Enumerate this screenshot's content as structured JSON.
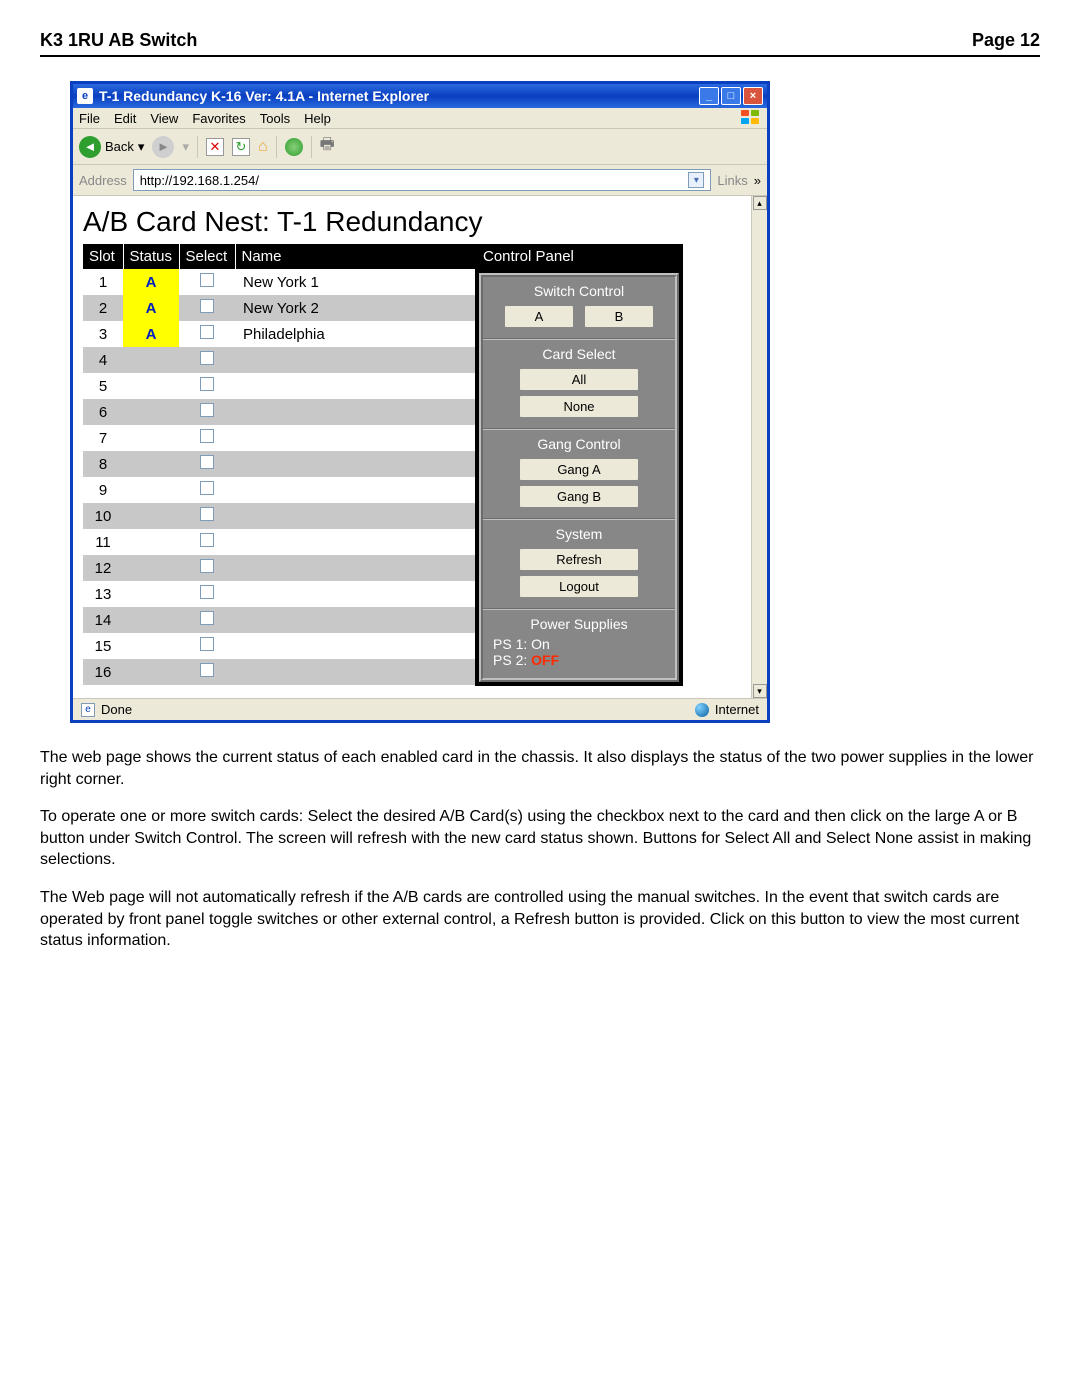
{
  "doc": {
    "header_left": "K3 1RU AB Switch",
    "header_right": "Page 12"
  },
  "window": {
    "title": "T-1 Redundancy K-16 Ver: 4.1A - Internet Explorer",
    "menus": [
      "File",
      "Edit",
      "View",
      "Favorites",
      "Tools",
      "Help"
    ],
    "back_label": "Back",
    "address_label": "Address",
    "address_url": "http://192.168.1.254/",
    "links_label": "Links",
    "status_done": "Done",
    "status_zone": "Internet"
  },
  "page": {
    "title": "A/B Card Nest: T-1 Redundancy",
    "columns": {
      "slot": "Slot",
      "status": "Status",
      "select": "Select",
      "name": "Name",
      "control": "Control Panel"
    },
    "rows": [
      {
        "slot": "1",
        "status": "A",
        "status_hilite": true,
        "name": "New York 1",
        "shade": "odd"
      },
      {
        "slot": "2",
        "status": "A",
        "status_hilite": true,
        "name": "New York 2",
        "shade": "even"
      },
      {
        "slot": "3",
        "status": "A",
        "status_hilite": true,
        "name": "Philadelphia",
        "shade": "odd"
      },
      {
        "slot": "4",
        "status": "",
        "status_hilite": false,
        "name": "",
        "shade": "even"
      },
      {
        "slot": "5",
        "status": "",
        "status_hilite": false,
        "name": "",
        "shade": "odd"
      },
      {
        "slot": "6",
        "status": "",
        "status_hilite": false,
        "name": "",
        "shade": "even"
      },
      {
        "slot": "7",
        "status": "",
        "status_hilite": false,
        "name": "",
        "shade": "odd"
      },
      {
        "slot": "8",
        "status": "",
        "status_hilite": false,
        "name": "",
        "shade": "even"
      },
      {
        "slot": "9",
        "status": "",
        "status_hilite": false,
        "name": "",
        "shade": "odd"
      },
      {
        "slot": "10",
        "status": "",
        "status_hilite": false,
        "name": "",
        "shade": "even"
      },
      {
        "slot": "11",
        "status": "",
        "status_hilite": false,
        "name": "",
        "shade": "odd"
      },
      {
        "slot": "12",
        "status": "",
        "status_hilite": false,
        "name": "",
        "shade": "even"
      },
      {
        "slot": "13",
        "status": "",
        "status_hilite": false,
        "name": "",
        "shade": "odd"
      },
      {
        "slot": "14",
        "status": "",
        "status_hilite": false,
        "name": "",
        "shade": "even"
      },
      {
        "slot": "15",
        "status": "",
        "status_hilite": false,
        "name": "",
        "shade": "odd"
      },
      {
        "slot": "16",
        "status": "",
        "status_hilite": false,
        "name": "",
        "shade": "even"
      }
    ],
    "control": {
      "switch_title": "Switch Control",
      "switch_a": "A",
      "switch_b": "B",
      "cardselect_title": "Card Select",
      "cardselect_all": "All",
      "cardselect_none": "None",
      "gang_title": "Gang Control",
      "gang_a": "Gang A",
      "gang_b": "Gang B",
      "system_title": "System",
      "system_refresh": "Refresh",
      "system_logout": "Logout",
      "ps_title": "Power Supplies",
      "ps1_label": "PS 1:",
      "ps1_value": "On",
      "ps2_label": "PS 2:",
      "ps2_value": "OFF"
    }
  },
  "colors": {
    "titlebar_bg": "#0a3fc0",
    "status_hilite_bg": "#ffff00",
    "status_hilite_fg": "#0020c0",
    "row_even_bg": "#c8c8c8",
    "row_odd_bg": "#ffffff",
    "panel_bg": "#878787",
    "ps_off_color": "#ff2a00"
  },
  "body_paragraphs": [
    "The web page shows the current status of each enabled card in the chassis.  It also displays the status of the two power supplies in the lower right corner.",
    "To operate one or more switch cards:  Select the desired A/B Card(s) using the checkbox next to the card and then click on the large A or B button under Switch Control.  The screen will refresh with the new card status shown.  Buttons for Select All and Select None assist in making selections.",
    "The Web page will not automatically refresh if the A/B cards are controlled using the manual switches.  In the event that switch cards are operated by front panel toggle switches or other external control, a Refresh button is provided.  Click on this button to view the most current status information."
  ]
}
